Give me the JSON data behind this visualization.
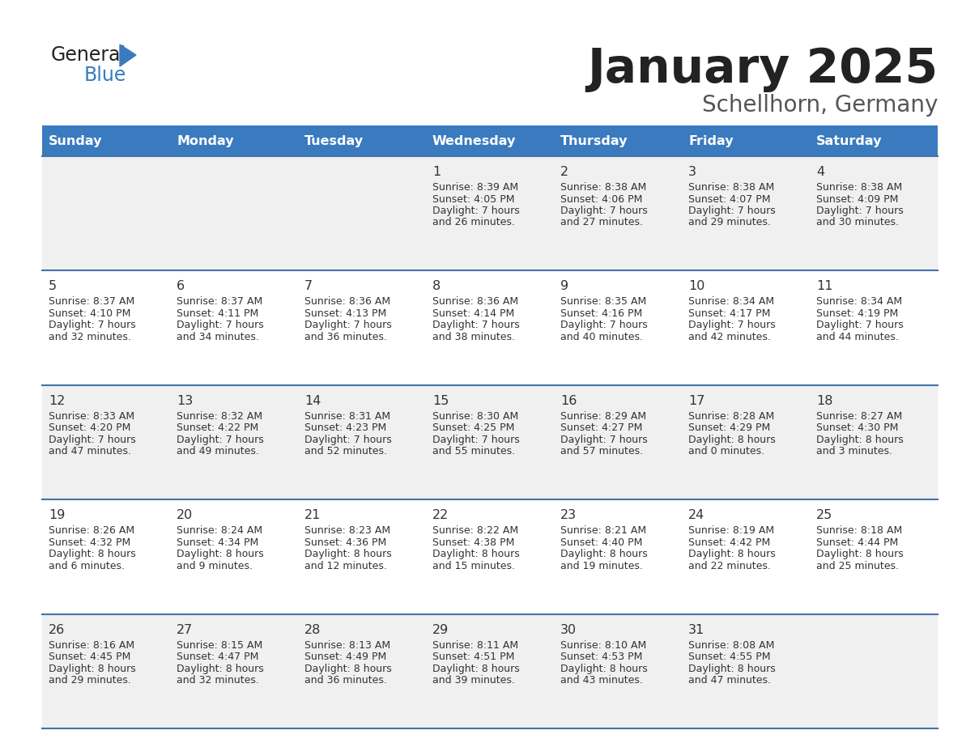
{
  "title": "January 2025",
  "subtitle": "Schellhorn, Germany",
  "days_of_week": [
    "Sunday",
    "Monday",
    "Tuesday",
    "Wednesday",
    "Thursday",
    "Friday",
    "Saturday"
  ],
  "header_bg": "#3a7bbf",
  "header_text": "#ffffff",
  "row_bg_odd": "#f0f0f0",
  "row_bg_even": "#ffffff",
  "day_num_color": "#333333",
  "text_color": "#333333",
  "line_color": "#4472a8",
  "calendar": [
    [
      {
        "day": "",
        "sunrise": "",
        "sunset": "",
        "daylight": ""
      },
      {
        "day": "",
        "sunrise": "",
        "sunset": "",
        "daylight": ""
      },
      {
        "day": "",
        "sunrise": "",
        "sunset": "",
        "daylight": ""
      },
      {
        "day": "1",
        "sunrise": "8:39 AM",
        "sunset": "4:05 PM",
        "daylight": "7 hours and 26 minutes."
      },
      {
        "day": "2",
        "sunrise": "8:38 AM",
        "sunset": "4:06 PM",
        "daylight": "7 hours and 27 minutes."
      },
      {
        "day": "3",
        "sunrise": "8:38 AM",
        "sunset": "4:07 PM",
        "daylight": "7 hours and 29 minutes."
      },
      {
        "day": "4",
        "sunrise": "8:38 AM",
        "sunset": "4:09 PM",
        "daylight": "7 hours and 30 minutes."
      }
    ],
    [
      {
        "day": "5",
        "sunrise": "8:37 AM",
        "sunset": "4:10 PM",
        "daylight": "7 hours and 32 minutes."
      },
      {
        "day": "6",
        "sunrise": "8:37 AM",
        "sunset": "4:11 PM",
        "daylight": "7 hours and 34 minutes."
      },
      {
        "day": "7",
        "sunrise": "8:36 AM",
        "sunset": "4:13 PM",
        "daylight": "7 hours and 36 minutes."
      },
      {
        "day": "8",
        "sunrise": "8:36 AM",
        "sunset": "4:14 PM",
        "daylight": "7 hours and 38 minutes."
      },
      {
        "day": "9",
        "sunrise": "8:35 AM",
        "sunset": "4:16 PM",
        "daylight": "7 hours and 40 minutes."
      },
      {
        "day": "10",
        "sunrise": "8:34 AM",
        "sunset": "4:17 PM",
        "daylight": "7 hours and 42 minutes."
      },
      {
        "day": "11",
        "sunrise": "8:34 AM",
        "sunset": "4:19 PM",
        "daylight": "7 hours and 44 minutes."
      }
    ],
    [
      {
        "day": "12",
        "sunrise": "8:33 AM",
        "sunset": "4:20 PM",
        "daylight": "7 hours and 47 minutes."
      },
      {
        "day": "13",
        "sunrise": "8:32 AM",
        "sunset": "4:22 PM",
        "daylight": "7 hours and 49 minutes."
      },
      {
        "day": "14",
        "sunrise": "8:31 AM",
        "sunset": "4:23 PM",
        "daylight": "7 hours and 52 minutes."
      },
      {
        "day": "15",
        "sunrise": "8:30 AM",
        "sunset": "4:25 PM",
        "daylight": "7 hours and 55 minutes."
      },
      {
        "day": "16",
        "sunrise": "8:29 AM",
        "sunset": "4:27 PM",
        "daylight": "7 hours and 57 minutes."
      },
      {
        "day": "17",
        "sunrise": "8:28 AM",
        "sunset": "4:29 PM",
        "daylight": "8 hours and 0 minutes."
      },
      {
        "day": "18",
        "sunrise": "8:27 AM",
        "sunset": "4:30 PM",
        "daylight": "8 hours and 3 minutes."
      }
    ],
    [
      {
        "day": "19",
        "sunrise": "8:26 AM",
        "sunset": "4:32 PM",
        "daylight": "8 hours and 6 minutes."
      },
      {
        "day": "20",
        "sunrise": "8:24 AM",
        "sunset": "4:34 PM",
        "daylight": "8 hours and 9 minutes."
      },
      {
        "day": "21",
        "sunrise": "8:23 AM",
        "sunset": "4:36 PM",
        "daylight": "8 hours and 12 minutes."
      },
      {
        "day": "22",
        "sunrise": "8:22 AM",
        "sunset": "4:38 PM",
        "daylight": "8 hours and 15 minutes."
      },
      {
        "day": "23",
        "sunrise": "8:21 AM",
        "sunset": "4:40 PM",
        "daylight": "8 hours and 19 minutes."
      },
      {
        "day": "24",
        "sunrise": "8:19 AM",
        "sunset": "4:42 PM",
        "daylight": "8 hours and 22 minutes."
      },
      {
        "day": "25",
        "sunrise": "8:18 AM",
        "sunset": "4:44 PM",
        "daylight": "8 hours and 25 minutes."
      }
    ],
    [
      {
        "day": "26",
        "sunrise": "8:16 AM",
        "sunset": "4:45 PM",
        "daylight": "8 hours and 29 minutes."
      },
      {
        "day": "27",
        "sunrise": "8:15 AM",
        "sunset": "4:47 PM",
        "daylight": "8 hours and 32 minutes."
      },
      {
        "day": "28",
        "sunrise": "8:13 AM",
        "sunset": "4:49 PM",
        "daylight": "8 hours and 36 minutes."
      },
      {
        "day": "29",
        "sunrise": "8:11 AM",
        "sunset": "4:51 PM",
        "daylight": "8 hours and 39 minutes."
      },
      {
        "day": "30",
        "sunrise": "8:10 AM",
        "sunset": "4:53 PM",
        "daylight": "8 hours and 43 minutes."
      },
      {
        "day": "31",
        "sunrise": "8:08 AM",
        "sunset": "4:55 PM",
        "daylight": "8 hours and 47 minutes."
      },
      {
        "day": "",
        "sunrise": "",
        "sunset": "",
        "daylight": ""
      }
    ]
  ]
}
